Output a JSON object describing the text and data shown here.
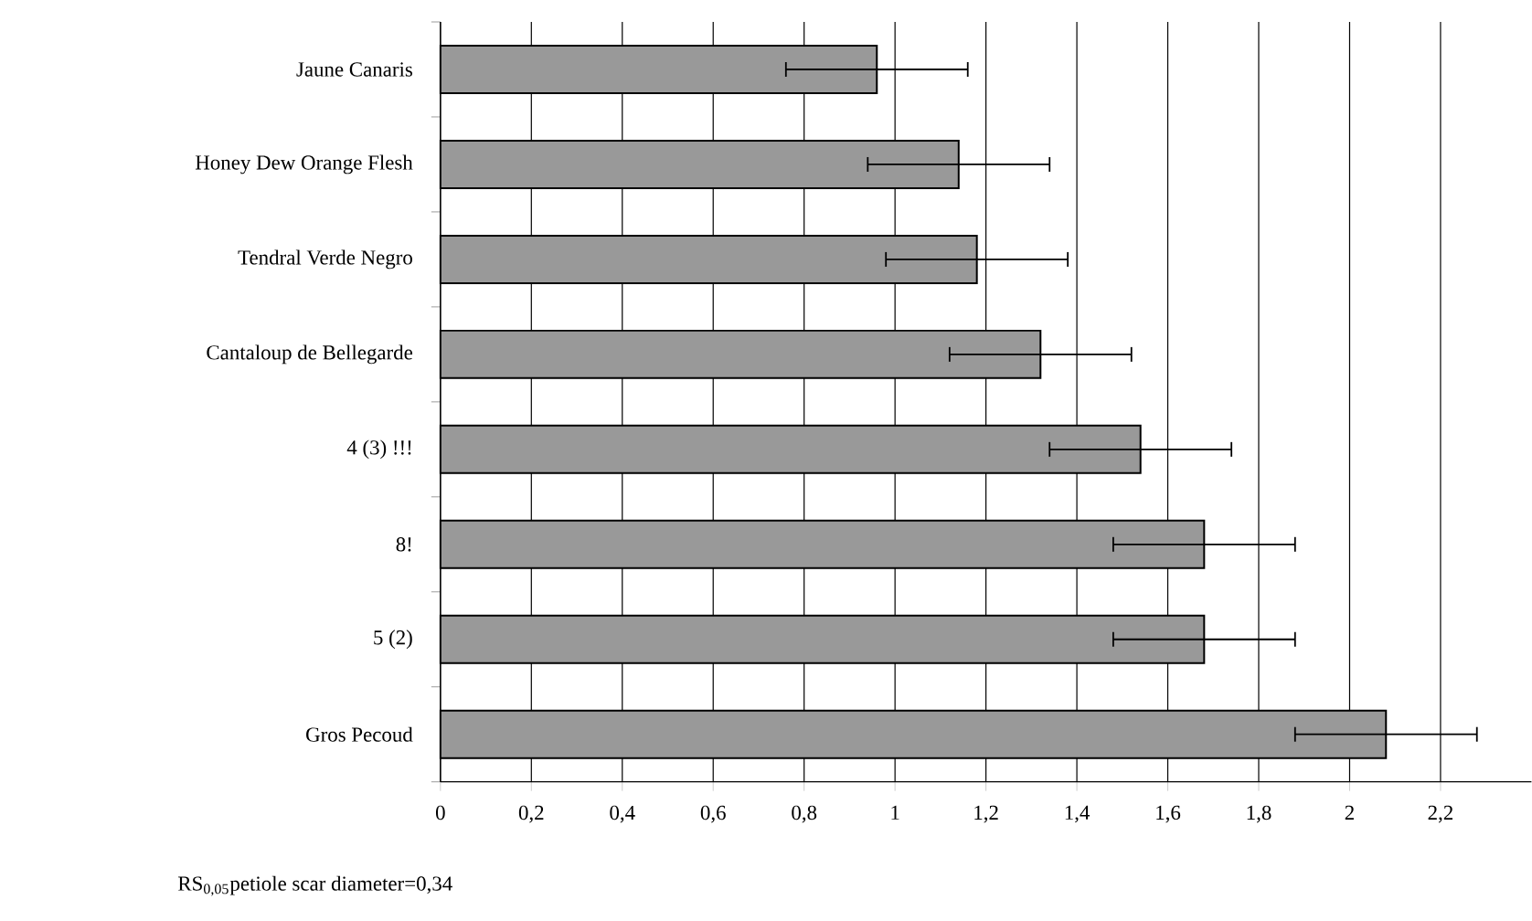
{
  "chart_data": {
    "type": "bar",
    "orientation": "horizontal",
    "categories": [
      "Jaune Canaris",
      "Honey Dew Orange Flesh",
      "Tendral Verde Negro",
      "Cantaloup de Bellegarde",
      "4 (3) !!!",
      "8!",
      "5 (2)",
      "Gros Pecoud"
    ],
    "values": [
      0.96,
      1.14,
      1.18,
      1.32,
      1.54,
      1.68,
      1.68,
      2.08
    ],
    "errors": [
      0.2,
      0.2,
      0.2,
      0.2,
      0.2,
      0.2,
      0.2,
      0.2
    ],
    "color": "#999999",
    "xlim": [
      0,
      2.4
    ],
    "xticks": [
      0,
      {
        "value": 0.2,
        "label": "0,2"
      },
      {
        "value": 0.4,
        "label": "0,4"
      },
      {
        "value": 0.6,
        "label": "0,6"
      },
      {
        "value": 0.8,
        "label": "0,8"
      },
      1,
      {
        "value": 1.2,
        "label": "1,2"
      },
      {
        "value": 1.4,
        "label": "1,4"
      },
      {
        "value": 1.6,
        "label": "1,6"
      },
      {
        "value": 1.8,
        "label": "1,8"
      },
      2,
      {
        "value": 2.2,
        "label": "2,2"
      }
    ],
    "grid": "x",
    "annotations": [
      "RS$_{0,05}$petiole scar diameter=0,34"
    ]
  }
}
